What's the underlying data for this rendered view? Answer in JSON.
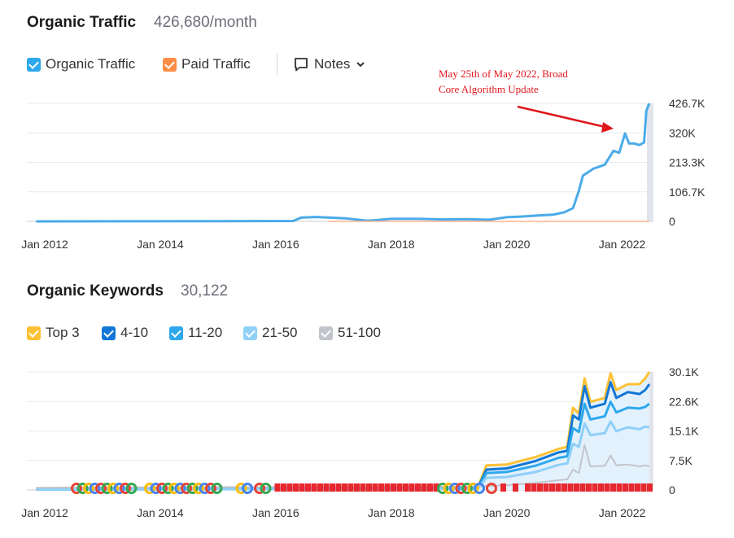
{
  "traffic": {
    "title": "Organic Traffic",
    "value": "426,680/month",
    "legend": [
      {
        "label": "Organic Traffic",
        "color": "#2ea8ec"
      },
      {
        "label": "Paid Traffic",
        "color": "#ff8c46"
      }
    ],
    "notes_label": "Notes",
    "annotation": [
      "May 25th of May 2022, Broad",
      "Core Algorithm Update"
    ]
  },
  "keywords": {
    "title": "Organic Keywords",
    "value": "30,122",
    "legend": [
      {
        "label": "Top 3",
        "color": "#fdc134"
      },
      {
        "label": "4-10",
        "color": "#1277d6"
      },
      {
        "label": "11-20",
        "color": "#2ea8ec"
      },
      {
        "label": "21-50",
        "color": "#8fd0f8"
      },
      {
        "label": "51-100",
        "color": "#c3c5cc"
      }
    ]
  },
  "chart_data": [
    {
      "type": "line",
      "x_ticks": [
        "Jan 2012",
        "Jan 2014",
        "Jan 2016",
        "Jan 2018",
        "Jan 2020",
        "Jan 2022"
      ],
      "y_ticks": [
        "426.7K",
        "320K",
        "213.3K",
        "106.7K",
        "0"
      ],
      "ylim": [
        0,
        426680
      ],
      "xlim": [
        2012.0,
        2022.5
      ],
      "grid": true,
      "series": [
        {
          "name": "Organic Traffic",
          "color": "#4aabe8",
          "points": [
            [
              2011.85,
              0
            ],
            [
              2015.0,
              800
            ],
            [
              2016.3,
              1500
            ],
            [
              2016.45,
              14000
            ],
            [
              2016.7,
              16000
            ],
            [
              2016.9,
              14000
            ],
            [
              2017.2,
              11000
            ],
            [
              2017.6,
              2500
            ],
            [
              2018.0,
              9000
            ],
            [
              2018.5,
              9000
            ],
            [
              2018.9,
              7000
            ],
            [
              2019.3,
              8000
            ],
            [
              2019.7,
              6000
            ],
            [
              2020.0,
              15000
            ],
            [
              2020.3,
              18000
            ],
            [
              2020.6,
              22000
            ],
            [
              2020.8,
              24000
            ],
            [
              2021.0,
              33000
            ],
            [
              2021.15,
              48000
            ],
            [
              2021.25,
              110000
            ],
            [
              2021.32,
              165000
            ],
            [
              2021.5,
              190000
            ],
            [
              2021.7,
              205000
            ],
            [
              2021.85,
              255000
            ],
            [
              2021.95,
              248000
            ],
            [
              2022.05,
              318000
            ],
            [
              2022.12,
              282000
            ],
            [
              2022.2,
              282000
            ],
            [
              2022.3,
              276000
            ],
            [
              2022.38,
              285000
            ],
            [
              2022.42,
              400000
            ],
            [
              2022.47,
              426680
            ]
          ]
        },
        {
          "name": "Paid Traffic",
          "color": "#ffb48a",
          "points": [
            [
              2016.9,
              0
            ],
            [
              2022.47,
              0
            ]
          ]
        }
      ]
    },
    {
      "type": "area",
      "x_ticks": [
        "Jan 2012",
        "Jan 2014",
        "Jan 2016",
        "Jan 2018",
        "Jan 2020",
        "Jan 2022"
      ],
      "y_ticks": [
        "30.1K",
        "22.6K",
        "15.1K",
        "7.5K",
        "0"
      ],
      "ylim": [
        0,
        30122
      ],
      "xlim": [
        2012.0,
        2022.5
      ],
      "grid": true,
      "series": [
        {
          "name": "Top 3",
          "color": "#fdc134",
          "points": [
            [
              2011.85,
              200
            ],
            [
              2019.5,
              600
            ],
            [
              2019.65,
              6300
            ],
            [
              2020.0,
              6500
            ],
            [
              2020.5,
              8400
            ],
            [
              2020.9,
              10500
            ],
            [
              2021.05,
              11000
            ],
            [
              2021.15,
              21000
            ],
            [
              2021.25,
              19500
            ],
            [
              2021.35,
              28500
            ],
            [
              2021.45,
              22500
            ],
            [
              2021.7,
              23500
            ],
            [
              2021.8,
              29800
            ],
            [
              2021.9,
              25500
            ],
            [
              2022.1,
              27000
            ],
            [
              2022.3,
              27000
            ],
            [
              2022.4,
              28500
            ],
            [
              2022.47,
              30122
            ]
          ]
        },
        {
          "name": "4-10",
          "color": "#1277d6",
          "points": [
            [
              2011.85,
              150
            ],
            [
              2019.5,
              500
            ],
            [
              2019.65,
              5200
            ],
            [
              2020.0,
              5500
            ],
            [
              2020.5,
              7400
            ],
            [
              2020.9,
              9600
            ],
            [
              2021.05,
              10000
            ],
            [
              2021.15,
              19000
            ],
            [
              2021.25,
              18000
            ],
            [
              2021.35,
              26500
            ],
            [
              2021.45,
              21000
            ],
            [
              2021.7,
              22000
            ],
            [
              2021.8,
              27500
            ],
            [
              2021.9,
              23500
            ],
            [
              2022.1,
              25000
            ],
            [
              2022.3,
              24500
            ],
            [
              2022.4,
              25500
            ],
            [
              2022.47,
              27000
            ]
          ]
        },
        {
          "name": "11-20",
          "color": "#2ea8ec",
          "points": [
            [
              2011.85,
              120
            ],
            [
              2019.5,
              400
            ],
            [
              2019.65,
              4300
            ],
            [
              2020.0,
              4600
            ],
            [
              2020.5,
              6200
            ],
            [
              2020.9,
              8200
            ],
            [
              2021.05,
              8600
            ],
            [
              2021.15,
              15800
            ],
            [
              2021.25,
              14800
            ],
            [
              2021.35,
              22000
            ],
            [
              2021.45,
              18000
            ],
            [
              2021.7,
              18800
            ],
            [
              2021.8,
              22500
            ],
            [
              2021.9,
              19800
            ],
            [
              2022.1,
              21000
            ],
            [
              2022.3,
              20800
            ],
            [
              2022.4,
              21200
            ],
            [
              2022.47,
              22000
            ]
          ]
        },
        {
          "name": "21-50",
          "color": "#8fd0f8",
          "points": [
            [
              2011.85,
              100
            ],
            [
              2019.5,
              300
            ],
            [
              2019.65,
              3100
            ],
            [
              2020.0,
              3300
            ],
            [
              2020.5,
              4600
            ],
            [
              2020.9,
              6400
            ],
            [
              2021.05,
              6800
            ],
            [
              2021.15,
              11800
            ],
            [
              2021.25,
              11000
            ],
            [
              2021.35,
              17000
            ],
            [
              2021.45,
              14000
            ],
            [
              2021.7,
              14500
            ],
            [
              2021.8,
              17500
            ],
            [
              2021.9,
              15000
            ],
            [
              2022.1,
              16000
            ],
            [
              2022.3,
              15500
            ],
            [
              2022.4,
              16200
            ],
            [
              2022.47,
              16000
            ]
          ]
        },
        {
          "name": "51-100",
          "color": "#c3c5cc",
          "points": [
            [
              2011.85,
              600
            ],
            [
              2019.5,
              900
            ],
            [
              2019.65,
              1000
            ],
            [
              2020.0,
              1200
            ],
            [
              2020.5,
              1800
            ],
            [
              2020.9,
              2500
            ],
            [
              2021.05,
              2700
            ],
            [
              2021.15,
              5200
            ],
            [
              2021.25,
              4300
            ],
            [
              2021.35,
              11500
            ],
            [
              2021.45,
              6000
            ],
            [
              2021.7,
              6200
            ],
            [
              2021.8,
              8800
            ],
            [
              2021.9,
              6300
            ],
            [
              2022.1,
              6500
            ],
            [
              2022.3,
              6000
            ],
            [
              2022.4,
              6300
            ],
            [
              2022.47,
              6000
            ]
          ]
        }
      ]
    }
  ]
}
